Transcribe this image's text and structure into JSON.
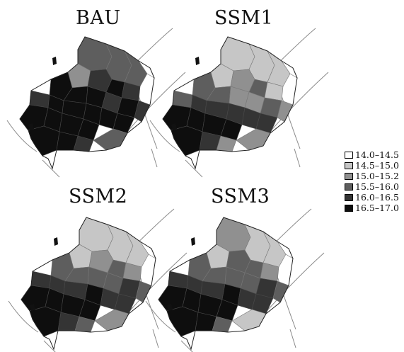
{
  "panels": [
    {
      "title": "BAU",
      "levels": [
        3,
        3,
        3,
        0,
        2,
        4,
        5,
        4,
        5,
        5,
        5,
        4,
        5,
        4,
        5,
        5,
        5,
        5,
        5,
        5,
        5,
        5,
        5,
        4,
        5,
        5,
        4,
        3
      ]
    },
    {
      "title": "SSM1",
      "levels": [
        1,
        1,
        1,
        0,
        1,
        2,
        3,
        1,
        3,
        3,
        2,
        2,
        3,
        3,
        4,
        4,
        4,
        5,
        5,
        5,
        5,
        4,
        4,
        2,
        5,
        4,
        2,
        2
      ]
    },
    {
      "title": "SSM2",
      "levels": [
        1,
        1,
        1,
        0,
        1,
        2,
        3,
        2,
        3,
        3,
        3,
        3,
        4,
        4,
        4,
        4,
        5,
        5,
        5,
        5,
        5,
        4,
        4,
        3,
        5,
        4,
        3,
        2
      ]
    },
    {
      "title": "SSM3",
      "levels": [
        2,
        1,
        1,
        0,
        1,
        3,
        3,
        2,
        3,
        3,
        3,
        3,
        4,
        4,
        4,
        4,
        5,
        5,
        5,
        5,
        5,
        4,
        4,
        3,
        5,
        5,
        3,
        1
      ]
    }
  ],
  "legend": {
    "items": [
      {
        "label": "14.0–14.5",
        "color": "#ffffff"
      },
      {
        "label": "14.5–15.0",
        "color": "#c6c6c6"
      },
      {
        "label": "15.0–15.2",
        "color": "#909090"
      },
      {
        "label": "15.5–16.0",
        "color": "#5e5e5e"
      },
      {
        "label": "16.0–16.5",
        "color": "#343434"
      },
      {
        "label": "16.5–17.0",
        "color": "#0e0e0e"
      }
    ]
  }
}
